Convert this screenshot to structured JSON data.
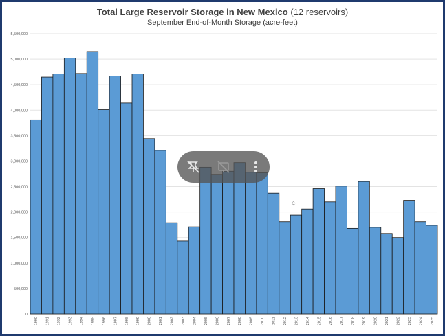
{
  "chart_data": {
    "type": "bar",
    "title": "Total Large Reservoir Storage in New Mexico",
    "title_suffix": "(12 reservoirs)",
    "subtitle": "September End-of-Month Storage (acre-feet)",
    "xlabel": "",
    "ylabel": "",
    "ylim": [
      0,
      5500000
    ],
    "yticks": [
      0,
      500000,
      1000000,
      1500000,
      2000000,
      2500000,
      3000000,
      3500000,
      4000000,
      4500000,
      5000000,
      5500000
    ],
    "ytick_labels": [
      "0",
      "500,000",
      "1,000,000",
      "1,500,000",
      "2,000,000",
      "2,500,000",
      "3,000,000",
      "3,500,000",
      "4,000,000",
      "4,500,000",
      "5,000,000",
      "5,500,000"
    ],
    "grid": true,
    "bar_color": "#5b9bd5",
    "categories": [
      "1990",
      "1991",
      "1992",
      "1993",
      "1994",
      "1995",
      "1996",
      "1997",
      "1998",
      "1999",
      "2000",
      "2001",
      "2002",
      "2003",
      "2004",
      "2005",
      "2006",
      "2007",
      "2008",
      "2009",
      "2010",
      "2011",
      "2012",
      "2013",
      "2014",
      "2015",
      "2016",
      "2017",
      "2018",
      "2019",
      "2020",
      "2021",
      "2022",
      "2023",
      "2024",
      "2025"
    ],
    "values": [
      3810000,
      4650000,
      4710000,
      5020000,
      4720000,
      5150000,
      4010000,
      4670000,
      4140000,
      4710000,
      3440000,
      3210000,
      1790000,
      1430000,
      1710000,
      2880000,
      2740000,
      2800000,
      2970000,
      2780000,
      2770000,
      2370000,
      1810000,
      1940000,
      2060000,
      2460000,
      2200000,
      2510000,
      1680000,
      2600000,
      1700000,
      1580000,
      1500000,
      2230000,
      1810000,
      1740000
    ]
  },
  "overlay": {
    "icons": [
      "unpin-icon",
      "hide-icon",
      "more-vertical-icon"
    ]
  },
  "annotation": "17"
}
